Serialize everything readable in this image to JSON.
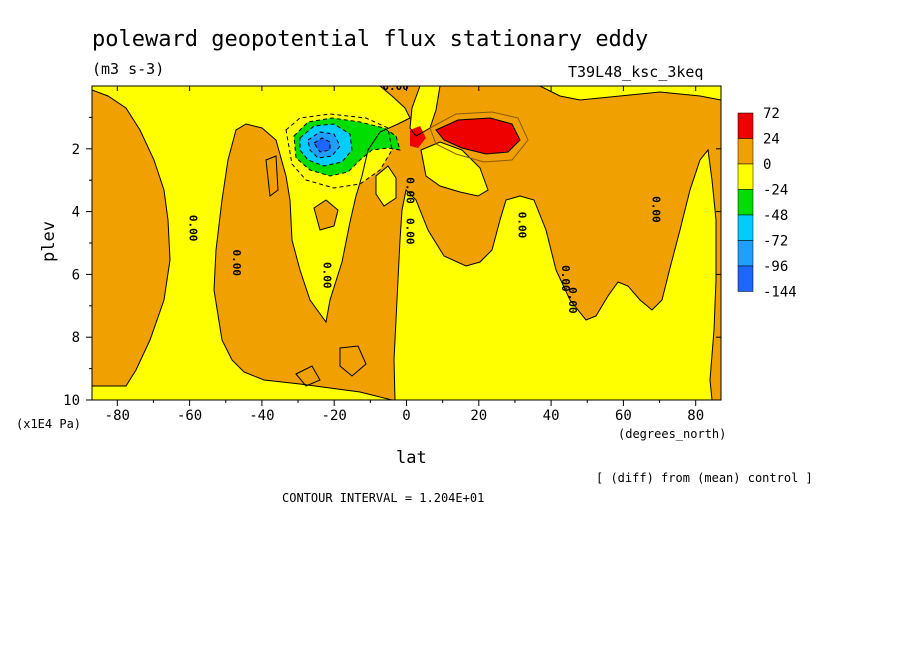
{
  "title": "poleward geopotential flux stationary eddy",
  "units": "(m3 s-3)",
  "run_label": "T39L48_ksc_3keq",
  "x_unit_label": "(degrees_north)",
  "y_unit_label": "(x1E4 Pa)",
  "xlabel": "lat",
  "ylabel": "plev",
  "diff_note": "[ (diff) from (mean) control ]",
  "contour_interval": "CONTOUR INTERVAL = 1.204E+01",
  "colors": {
    "red": "#ee0000",
    "orange": "#f0a000",
    "yellow": "#ffff00",
    "green": "#00dd00",
    "cyan": "#00ccff",
    "blue1": "#1f9fff",
    "blue2": "#1f66ff"
  },
  "chart_data": {
    "type": "heatmap",
    "title": "poleward geopotential flux stationary eddy",
    "xlabel": "lat",
    "ylabel": "plev",
    "x_units": "degrees_north",
    "y_units": "x1E4 Pa",
    "xlim": [
      -87,
      87
    ],
    "ylim": [
      10,
      0
    ],
    "x_ticks": [
      -80,
      -60,
      -40,
      -20,
      0,
      20,
      40,
      60,
      80
    ],
    "y_ticks": [
      2,
      4,
      6,
      8,
      10
    ],
    "colorbar": {
      "levels": [
        72,
        24,
        0,
        -24,
        -48,
        -72,
        -96,
        -144
      ],
      "colors": [
        "#ee0000",
        "#f0a000",
        "#ffff00",
        "#00dd00",
        "#00ccff",
        "#1f9fff",
        "#1f66ff"
      ]
    },
    "contour_labels": [
      {
        "text": "0.00",
        "lat": -3,
        "plev": 0.0,
        "rotate": 0
      },
      {
        "text": "0.00",
        "lat": -60,
        "plev": 4.4,
        "rotate": 90
      },
      {
        "text": "0.00",
        "lat": -48,
        "plev": 5.5,
        "rotate": 90
      },
      {
        "text": "0.00",
        "lat": -23,
        "plev": 5.9,
        "rotate": 90
      },
      {
        "text": "0.00",
        "lat": 0,
        "plev": 3.2,
        "rotate": 90
      },
      {
        "text": "0.00",
        "lat": 0,
        "plev": 4.5,
        "rotate": 90
      },
      {
        "text": "0.00",
        "lat": 31,
        "plev": 4.3,
        "rotate": 90
      },
      {
        "text": "0.00",
        "lat": 43,
        "plev": 6.0,
        "rotate": 90
      },
      {
        "text": "0.00",
        "lat": 45,
        "plev": 6.7,
        "rotate": 90
      },
      {
        "text": "0.00",
        "lat": 68,
        "plev": 3.8,
        "rotate": 90
      }
    ]
  }
}
